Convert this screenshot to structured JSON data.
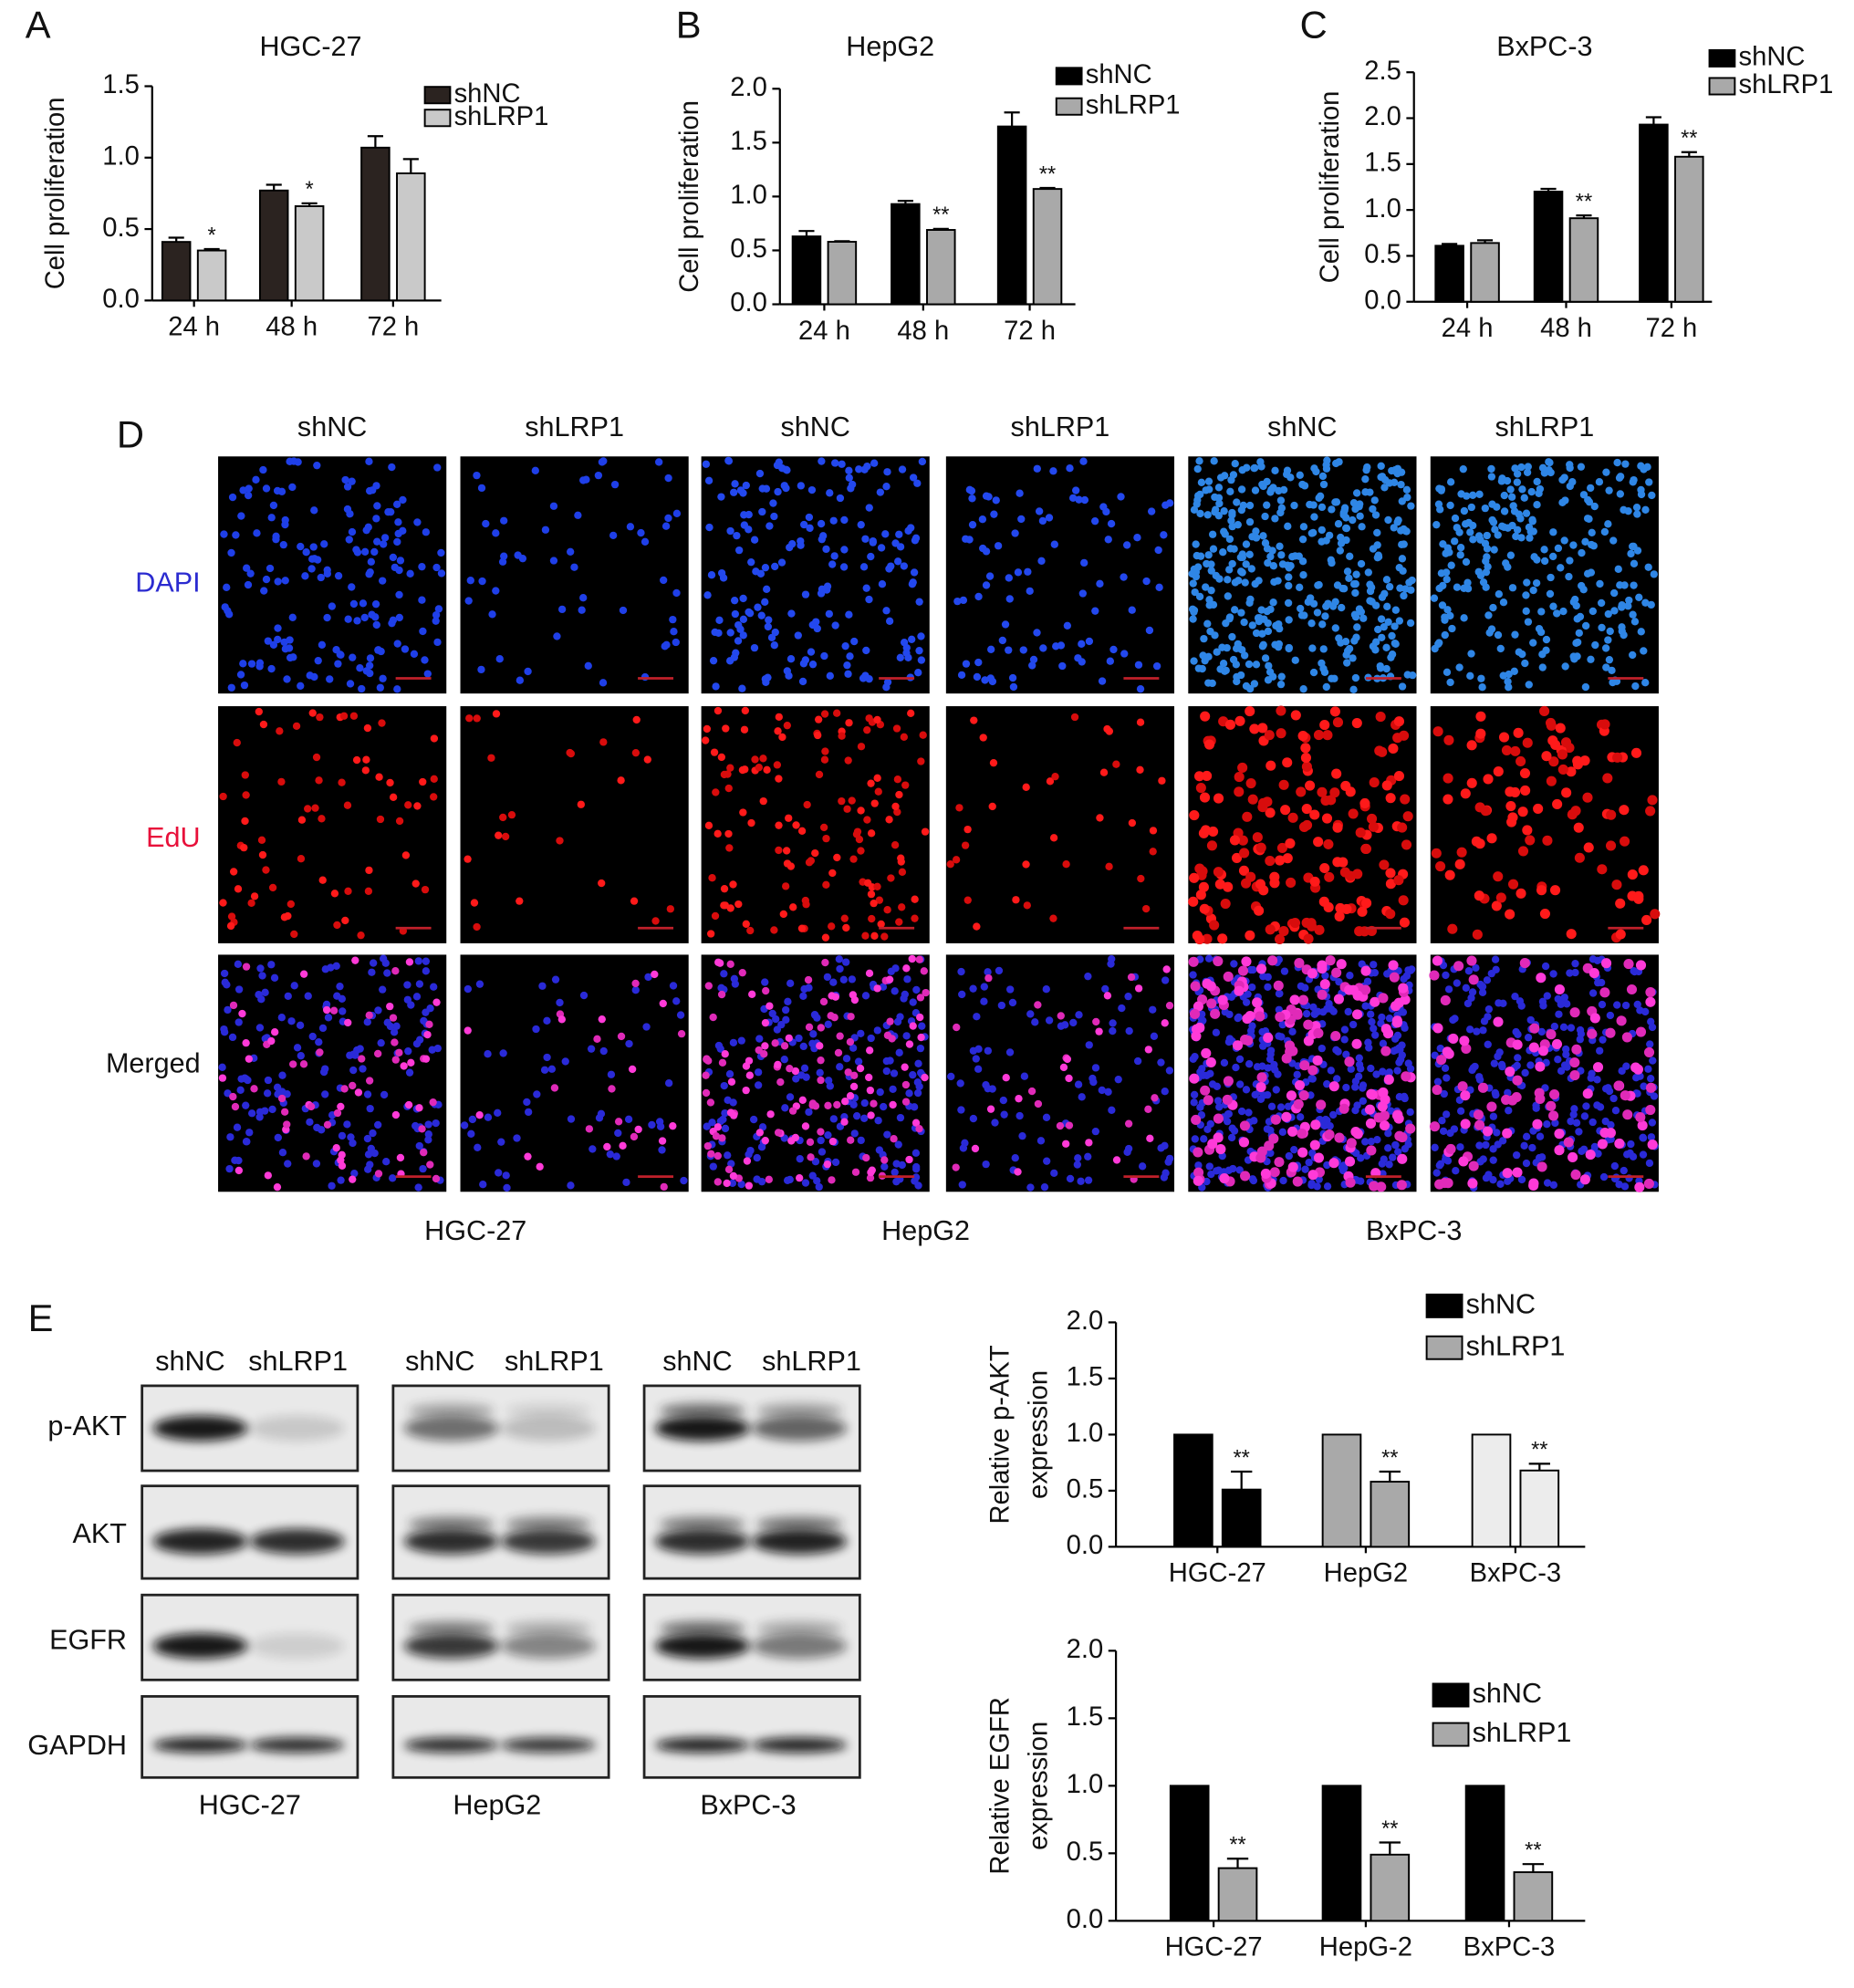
{
  "chart_data": [
    {
      "type": "bar",
      "panel": "A",
      "title": "HGC-27",
      "y_label": [
        "Cell proliferation"
      ],
      "categories": [
        "24 h",
        "48 h",
        "72 h"
      ],
      "series": [
        {
          "name": "shNC",
          "color": "#2b2320",
          "values": [
            0.41,
            0.77,
            1.07
          ],
          "errors": [
            0.03,
            0.04,
            0.08
          ]
        },
        {
          "name": "shLRP1",
          "color": "#c9c9c9",
          "values": [
            0.35,
            0.66,
            0.89
          ],
          "errors": [
            0.01,
            0.02,
            0.1
          ],
          "annotations": [
            "*",
            "*",
            null
          ]
        }
      ],
      "ylim": [
        0,
        1.5
      ],
      "yticks": [
        {
          "value": 0,
          "label": "0.0"
        },
        0.5,
        {
          "value": 1,
          "label": "1.0"
        },
        1.5
      ]
    },
    {
      "type": "bar",
      "panel": "B",
      "title": "HepG2",
      "y_label": [
        "Cell proliferation"
      ],
      "categories": [
        "24 h",
        "48 h",
        "72 h"
      ],
      "series": [
        {
          "name": "shNC",
          "color": "#000000",
          "values": [
            0.63,
            0.93,
            1.65
          ],
          "errors": [
            0.05,
            0.03,
            0.13
          ]
        },
        {
          "name": "shLRP1",
          "color": "#a9a9a9",
          "values": [
            0.58,
            0.69,
            1.07
          ],
          "errors": [
            0.005,
            0.01,
            0.01
          ],
          "annotations": [
            null,
            "**",
            "**"
          ]
        }
      ],
      "ylim": [
        0,
        2
      ],
      "yticks": [
        {
          "value": 0,
          "label": "0.0"
        },
        0.5,
        {
          "value": 1,
          "label": "1.0"
        },
        1.5,
        {
          "value": 2,
          "label": "2.0"
        }
      ]
    },
    {
      "type": "bar",
      "panel": "C",
      "title": "BxPC-3",
      "y_label": [
        "Cell proliferation"
      ],
      "categories": [
        "24 h",
        "48 h",
        "72 h"
      ],
      "series": [
        {
          "name": "shNC",
          "color": "#000000",
          "values": [
            0.61,
            1.2,
            1.93
          ],
          "errors": [
            0.02,
            0.03,
            0.08
          ]
        },
        {
          "name": "shLRP1",
          "color": "#a9a9a9",
          "values": [
            0.64,
            0.91,
            1.58
          ],
          "errors": [
            0.03,
            0.03,
            0.05
          ],
          "annotations": [
            null,
            "**",
            "**"
          ]
        }
      ],
      "ylim": [
        0,
        2.5
      ],
      "yticks": [
        {
          "value": 0,
          "label": "0.0"
        },
        0.5,
        {
          "value": 1,
          "label": "1.0"
        },
        1.5,
        {
          "value": 2,
          "label": "2.0"
        },
        2.5
      ]
    },
    {
      "type": "bar",
      "y_label": [
        "Relative p-AKT",
        "expression"
      ],
      "categories": [
        "HGC-27",
        "HepG2",
        "BxPC-3"
      ],
      "bar_colors": [
        "#000000",
        "#a9a9a9",
        "#ececec"
      ],
      "series": [
        {
          "name": "shNC",
          "color": "#000000",
          "values": [
            1,
            1,
            1
          ]
        },
        {
          "name": "shLRP1",
          "color": "#a9a9a9",
          "values": [
            0.51,
            0.58,
            0.68
          ],
          "errors": [
            0.16,
            0.09,
            0.06
          ],
          "annotations": [
            "**",
            "**",
            "**"
          ]
        }
      ],
      "ylim": [
        0,
        2
      ],
      "yticks": [
        {
          "value": 0,
          "label": "0.0"
        },
        0.5,
        {
          "value": 1,
          "label": "1.0"
        },
        1.5,
        {
          "value": 2,
          "label": "2.0"
        }
      ]
    },
    {
      "type": "bar",
      "y_label": [
        "Relative EGFR",
        "expression"
      ],
      "categories": [
        "HGC-27",
        "HepG-2",
        "BxPC-3"
      ],
      "series": [
        {
          "name": "shNC",
          "color": "#000000",
          "values": [
            1,
            1,
            1
          ]
        },
        {
          "name": "shLRP1",
          "color": "#a9a9a9",
          "values": [
            0.39,
            0.49,
            0.36
          ],
          "errors": [
            0.07,
            0.09,
            0.06
          ],
          "annotations": [
            "**",
            "**",
            "**"
          ]
        }
      ],
      "ylim": [
        0,
        2
      ],
      "yticks": [
        {
          "value": 0,
          "label": "0.0"
        },
        0.5,
        {
          "value": 1,
          "label": "1.0"
        },
        1.5,
        {
          "value": 2,
          "label": "2.0"
        }
      ]
    }
  ],
  "panel_d": {
    "label": "D",
    "columns": [
      "shNC",
      "shLRP1",
      "shNC",
      "shLRP1",
      "shNC",
      "shLRP1"
    ],
    "rows": [
      {
        "label": "DAPI",
        "color": "#2b2bd0"
      },
      {
        "label": "EdU",
        "color": "#e8103a"
      },
      {
        "label": "Merged",
        "color": "#111111"
      }
    ],
    "cell_lines": [
      "HGC-27",
      "HepG2",
      "BxPC-3"
    ]
  },
  "panel_e": {
    "label": "E",
    "lanes": [
      "shNC",
      "shLRP1",
      "shNC",
      "shLRP1",
      "shNC",
      "shLRP1"
    ],
    "proteins": [
      "p-AKT",
      "AKT",
      "EGFR",
      "GAPDH"
    ],
    "cell_lines": [
      "HGC-27",
      "HepG2",
      "BxPC-3"
    ]
  }
}
